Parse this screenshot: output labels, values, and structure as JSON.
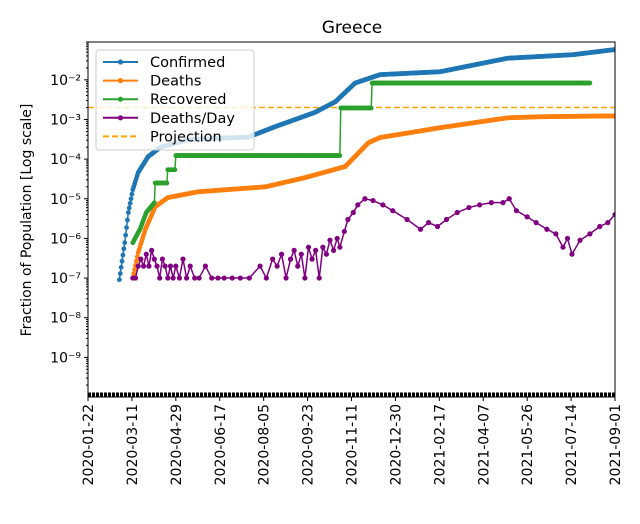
{
  "chart_data": {
    "type": "line",
    "title": "Greece",
    "xlabel": "",
    "ylabel": "Fraction of Population [Log scale]",
    "yscale": "log",
    "ylim": [
      1e-10,
      0.09
    ],
    "xlim": [
      "2020-01-22",
      "2021-09-01"
    ],
    "grid": false,
    "legend_position": "top-left",
    "xticks": [
      "2020-01-22",
      "2020-03-11",
      "2020-04-29",
      "2020-06-17",
      "2020-08-05",
      "2020-09-23",
      "2020-11-11",
      "2020-12-30",
      "2021-02-17",
      "2021-04-07",
      "2021-05-26",
      "2021-07-14",
      "2021-09-01"
    ],
    "yticks": [
      {
        "value": 0.01,
        "label": "10⁻²"
      },
      {
        "value": 0.001,
        "label": "10⁻³"
      },
      {
        "value": 0.0001,
        "label": "10⁻⁴"
      },
      {
        "value": 1e-05,
        "label": "10⁻⁵"
      },
      {
        "value": 1e-06,
        "label": "10⁻⁶"
      },
      {
        "value": 1e-07,
        "label": "10⁻⁷"
      },
      {
        "value": 1e-08,
        "label": "10⁻⁸"
      },
      {
        "value": 1e-09,
        "label": "10⁻⁹"
      }
    ],
    "series": [
      {
        "name": "Confirmed",
        "color": "#1f77b4",
        "daily_markers": true,
        "points": [
          [
            "2020-02-26",
            9.1e-08
          ],
          [
            "2020-03-03",
            7.8e-07
          ],
          [
            "2020-03-07",
            4.5e-06
          ],
          [
            "2020-03-12",
            1.7e-05
          ],
          [
            "2020-03-18",
            4.6e-05
          ],
          [
            "2020-03-29",
            0.000115
          ],
          [
            "2020-04-12",
            0.0002
          ],
          [
            "2020-05-13",
            0.00031
          ],
          [
            "2020-07-19",
            0.00036
          ],
          [
            "2020-08-18",
            0.00066
          ],
          [
            "2020-10-01",
            0.0015
          ],
          [
            "2020-10-24",
            0.0028
          ],
          [
            "2020-11-15",
            0.0083
          ],
          [
            "2020-12-13",
            0.0135
          ],
          [
            "2021-02-18",
            0.016
          ],
          [
            "2021-05-04",
            0.035
          ],
          [
            "2021-07-16",
            0.043
          ],
          [
            "2021-09-01",
            0.058
          ]
        ]
      },
      {
        "name": "Deaths",
        "color": "#ff7f0e",
        "daily_markers": true,
        "points": [
          [
            "2020-03-12",
            1e-07
          ],
          [
            "2020-03-18",
            4.4e-07
          ],
          [
            "2020-03-26",
            1.7e-06
          ],
          [
            "2020-04-06",
            6.3e-06
          ],
          [
            "2020-04-20",
            1.07e-05
          ],
          [
            "2020-05-24",
            1.5e-05
          ],
          [
            "2020-08-07",
            2e-05
          ],
          [
            "2020-09-20",
            3.4e-05
          ],
          [
            "2020-11-04",
            6.5e-05
          ],
          [
            "2020-11-30",
            0.00026
          ],
          [
            "2020-12-13",
            0.00035
          ],
          [
            "2021-02-18",
            0.00062
          ],
          [
            "2021-05-04",
            0.0011
          ],
          [
            "2021-06-09",
            0.00117
          ],
          [
            "2021-09-01",
            0.00123
          ]
        ]
      },
      {
        "name": "Recovered",
        "color": "#2ca02c",
        "daily_markers": true,
        "points": [
          [
            "2020-03-12",
            7.8e-07
          ],
          [
            "2020-03-20",
            1.7e-06
          ],
          [
            "2020-03-27",
            4.5e-06
          ],
          [
            "2020-04-05",
            7.9e-06
          ],
          [
            "2020-04-06",
            2.5e-05
          ],
          [
            "2020-04-19",
            2.5e-05
          ],
          [
            "2020-04-20",
            5.4e-05
          ],
          [
            "2020-04-28",
            5.4e-05
          ],
          [
            "2020-04-29",
            0.000123
          ],
          [
            "2020-10-29",
            0.000123
          ],
          [
            "2020-10-30",
            0.00195
          ],
          [
            "2020-12-03",
            0.00195
          ],
          [
            "2020-12-04",
            0.0083
          ],
          [
            "2021-08-04",
            0.0083
          ]
        ]
      },
      {
        "name": "Deaths/Day",
        "color": "#800080",
        "daily_markers": false,
        "points": [
          [
            "2020-03-12",
            1e-07
          ],
          [
            "2020-03-15",
            1e-07
          ],
          [
            "2020-03-18",
            2e-07
          ],
          [
            "2020-03-21",
            3e-07
          ],
          [
            "2020-03-24",
            2e-07
          ],
          [
            "2020-03-27",
            4e-07
          ],
          [
            "2020-03-30",
            2e-07
          ],
          [
            "2020-04-02",
            5e-07
          ],
          [
            "2020-04-05",
            3e-07
          ],
          [
            "2020-04-08",
            2e-07
          ],
          [
            "2020-04-11",
            1e-07
          ],
          [
            "2020-04-14",
            3e-07
          ],
          [
            "2020-04-17",
            2e-07
          ],
          [
            "2020-04-20",
            1e-07
          ],
          [
            "2020-04-23",
            2e-07
          ],
          [
            "2020-04-26",
            1e-07
          ],
          [
            "2020-04-29",
            2e-07
          ],
          [
            "2020-05-03",
            1e-07
          ],
          [
            "2020-05-07",
            3e-07
          ],
          [
            "2020-05-11",
            1e-07
          ],
          [
            "2020-05-15",
            2e-07
          ],
          [
            "2020-05-20",
            1e-07
          ],
          [
            "2020-05-25",
            1e-07
          ],
          [
            "2020-06-01",
            2e-07
          ],
          [
            "2020-06-08",
            1e-07
          ],
          [
            "2020-06-15",
            1e-07
          ],
          [
            "2020-06-22",
            1e-07
          ],
          [
            "2020-07-01",
            1e-07
          ],
          [
            "2020-07-10",
            1e-07
          ],
          [
            "2020-07-20",
            1e-07
          ],
          [
            "2020-08-01",
            2e-07
          ],
          [
            "2020-08-08",
            1e-07
          ],
          [
            "2020-08-15",
            3e-07
          ],
          [
            "2020-08-20",
            2e-07
          ],
          [
            "2020-08-25",
            4e-07
          ],
          [
            "2020-08-30",
            1e-07
          ],
          [
            "2020-09-04",
            3e-07
          ],
          [
            "2020-09-08",
            5e-07
          ],
          [
            "2020-09-12",
            2e-07
          ],
          [
            "2020-09-16",
            4e-07
          ],
          [
            "2020-09-20",
            1e-07
          ],
          [
            "2020-09-24",
            6e-07
          ],
          [
            "2020-09-28",
            3e-07
          ],
          [
            "2020-10-02",
            5e-07
          ],
          [
            "2020-10-06",
            1e-07
          ],
          [
            "2020-10-10",
            6e-07
          ],
          [
            "2020-10-14",
            4e-07
          ],
          [
            "2020-10-18",
            9e-07
          ],
          [
            "2020-10-22",
            5e-07
          ],
          [
            "2020-10-26",
            1e-06
          ],
          [
            "2020-10-29",
            6e-07
          ],
          [
            "2020-11-03",
            1.5e-06
          ],
          [
            "2020-11-07",
            3e-06
          ],
          [
            "2020-11-13",
            4.5e-06
          ],
          [
            "2020-11-18",
            7e-06
          ],
          [
            "2020-11-26",
            1e-05
          ],
          [
            "2020-12-05",
            9e-06
          ],
          [
            "2020-12-16",
            7e-06
          ],
          [
            "2020-12-27",
            5e-06
          ],
          [
            "2021-01-12",
            3e-06
          ],
          [
            "2021-01-27",
            1.7e-06
          ],
          [
            "2021-02-05",
            2.5e-06
          ],
          [
            "2021-02-15",
            2e-06
          ],
          [
            "2021-02-25",
            3e-06
          ],
          [
            "2021-03-09",
            4.5e-06
          ],
          [
            "2021-03-22",
            6e-06
          ],
          [
            "2021-04-03",
            7e-06
          ],
          [
            "2021-04-16",
            8e-06
          ],
          [
            "2021-04-29",
            8e-06
          ],
          [
            "2021-05-06",
            1e-05
          ],
          [
            "2021-05-14",
            5e-06
          ],
          [
            "2021-05-26",
            3.5e-06
          ],
          [
            "2021-06-05",
            2.5e-06
          ],
          [
            "2021-06-17",
            1.7e-06
          ],
          [
            "2021-06-27",
            1.3e-06
          ],
          [
            "2021-07-05",
            6e-07
          ],
          [
            "2021-07-10",
            1e-06
          ],
          [
            "2021-07-15",
            4e-07
          ],
          [
            "2021-07-24",
            9e-07
          ],
          [
            "2021-08-04",
            1.3e-06
          ],
          [
            "2021-08-15",
            2e-06
          ],
          [
            "2021-08-24",
            2.5e-06
          ],
          [
            "2021-09-01",
            4e-06
          ]
        ]
      }
    ],
    "projection": {
      "name": "Projection",
      "color": "#ffa500",
      "value": 0.002
    }
  }
}
